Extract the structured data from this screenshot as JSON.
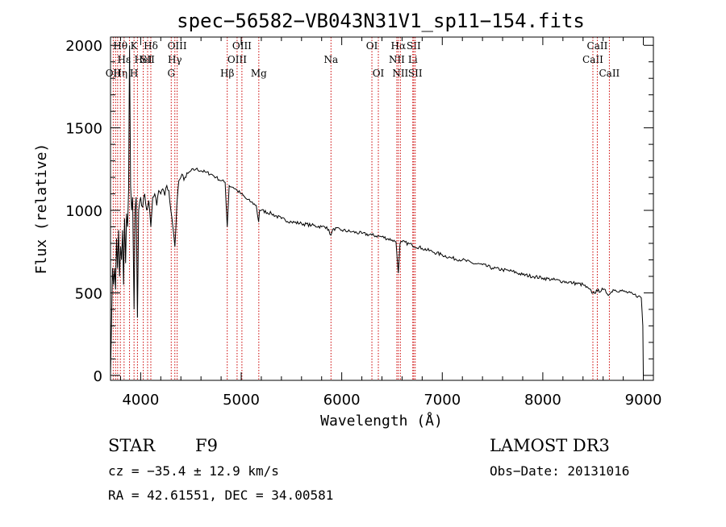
{
  "chart_data": {
    "type": "line",
    "title": "spec−56582−VB043N31V1_sp11−154.fits",
    "xlabel": "Wavelength (Å)",
    "ylabel": "Flux (relative)",
    "xlim": [
      3700,
      9100
    ],
    "ylim": [
      -30,
      2050
    ],
    "x_ticks": [
      4000,
      5000,
      6000,
      7000,
      8000,
      9000
    ],
    "y_ticks": [
      0,
      500,
      1000,
      1500,
      2000
    ],
    "x_tick_labels": [
      "4000",
      "5000",
      "6000",
      "7000",
      "8000",
      "9000"
    ],
    "y_tick_labels": [
      "0",
      "500",
      "1000",
      "1500",
      "2000"
    ],
    "grid": false,
    "series": [
      {
        "name": "spectrum",
        "x": [
          3700,
          3710,
          3720,
          3730,
          3740,
          3750,
          3760,
          3770,
          3780,
          3790,
          3800,
          3810,
          3820,
          3830,
          3840,
          3850,
          3860,
          3870,
          3880,
          3889,
          3900,
          3910,
          3920,
          3934,
          3945,
          3955,
          3968,
          3980,
          3990,
          4000,
          4020,
          4040,
          4060,
          4080,
          4101,
          4120,
          4140,
          4160,
          4180,
          4200,
          4220,
          4240,
          4260,
          4280,
          4300,
          4320,
          4340,
          4360,
          4380,
          4400,
          4450,
          4500,
          4550,
          4600,
          4650,
          4700,
          4750,
          4800,
          4840,
          4861,
          4880,
          4920,
          4960,
          5000,
          5050,
          5100,
          5150,
          5173,
          5183,
          5200,
          5300,
          5400,
          5500,
          5600,
          5700,
          5800,
          5850,
          5893,
          5920,
          6000,
          6100,
          6200,
          6300,
          6400,
          6500,
          6540,
          6563,
          6580,
          6600,
          6700,
          6800,
          6900,
          7000,
          7100,
          7200,
          7300,
          7400,
          7500,
          7600,
          7700,
          7800,
          7900,
          8000,
          8100,
          8200,
          8300,
          8400,
          8498,
          8542,
          8600,
          8662,
          8700,
          8800,
          8900,
          8950,
          8980,
          8995,
          9000
        ],
        "values": [
          0,
          300,
          650,
          550,
          650,
          520,
          830,
          650,
          880,
          600,
          780,
          700,
          880,
          550,
          950,
          680,
          980,
          900,
          1120,
          2000,
          1150,
          1000,
          1080,
          400,
          1000,
          1080,
          350,
          1000,
          1050,
          1080,
          1020,
          1100,
          1000,
          1060,
          900,
          1080,
          1100,
          1030,
          1120,
          1100,
          1130,
          1090,
          1150,
          1120,
          1000,
          900,
          780,
          1040,
          1180,
          1200,
          1200,
          1240,
          1250,
          1240,
          1230,
          1220,
          1200,
          1180,
          1170,
          900,
          1150,
          1140,
          1120,
          1100,
          1070,
          1050,
          1030,
          930,
          1000,
          1000,
          980,
          950,
          930,
          920,
          910,
          900,
          900,
          850,
          890,
          880,
          870,
          860,
          850,
          840,
          820,
          810,
          620,
          800,
          810,
          790,
          770,
          750,
          730,
          710,
          700,
          680,
          670,
          650,
          640,
          630,
          610,
          600,
          590,
          580,
          570,
          560,
          550,
          500,
          510,
          520,
          490,
          520,
          510,
          490,
          480,
          470,
          300,
          0
        ]
      }
    ],
    "lines": [
      {
        "wave": 3727,
        "labels": [
          "",
          "",
          "OII"
        ]
      },
      {
        "wave": 3750,
        "labels": [
          "",
          "",
          ""
        ]
      },
      {
        "wave": 3771,
        "labels": [
          "",
          "",
          ""
        ]
      },
      {
        "wave": 3798,
        "labels": [
          "Hθ",
          "",
          "Hη"
        ]
      },
      {
        "wave": 3835,
        "labels": [
          "",
          "Hε",
          ""
        ]
      },
      {
        "wave": 3889,
        "labels": [
          "",
          "",
          ""
        ]
      },
      {
        "wave": 3934,
        "labels": [
          "K",
          "",
          "H"
        ]
      },
      {
        "wave": 3968,
        "labels": [
          "",
          "",
          ""
        ]
      },
      {
        "wave": 4026,
        "labels": [
          "",
          "HeI",
          ""
        ]
      },
      {
        "wave": 4069,
        "labels": [
          "",
          "SII",
          ""
        ]
      },
      {
        "wave": 4101,
        "labels": [
          "Hδ",
          "",
          ""
        ]
      },
      {
        "wave": 4304,
        "labels": [
          "",
          "",
          "G"
        ]
      },
      {
        "wave": 4340,
        "labels": [
          "",
          "Hγ",
          ""
        ]
      },
      {
        "wave": 4363,
        "labels": [
          "OIII",
          "",
          ""
        ]
      },
      {
        "wave": 4861,
        "labels": [
          "",
          "",
          "Hβ"
        ]
      },
      {
        "wave": 4959,
        "labels": [
          "",
          "OIII",
          ""
        ]
      },
      {
        "wave": 5007,
        "labels": [
          "OIII",
          "",
          ""
        ]
      },
      {
        "wave": 5175,
        "labels": [
          "",
          "",
          "Mg"
        ]
      },
      {
        "wave": 5893,
        "labels": [
          "",
          "Na",
          ""
        ]
      },
      {
        "wave": 6300,
        "labels": [
          "OI",
          "",
          ""
        ]
      },
      {
        "wave": 6364,
        "labels": [
          "",
          "",
          "OI"
        ]
      },
      {
        "wave": 6548,
        "labels": [
          "",
          "NII",
          ""
        ]
      },
      {
        "wave": 6563,
        "labels": [
          "Hα",
          "",
          ""
        ]
      },
      {
        "wave": 6583,
        "labels": [
          "",
          "",
          "NII"
        ]
      },
      {
        "wave": 6707,
        "labels": [
          "",
          "Li",
          ""
        ]
      },
      {
        "wave": 6716,
        "labels": [
          "SII",
          "",
          ""
        ]
      },
      {
        "wave": 6731,
        "labels": [
          "",
          "",
          "SII"
        ]
      },
      {
        "wave": 8498,
        "labels": [
          "",
          "CaII",
          ""
        ]
      },
      {
        "wave": 8542,
        "labels": [
          "CaII",
          "",
          ""
        ]
      },
      {
        "wave": 8662,
        "labels": [
          "",
          "",
          "CaII"
        ]
      }
    ]
  },
  "info": {
    "object_class": "STAR",
    "subclass": "F9",
    "survey": "LAMOST DR3",
    "redshift": "cz = −35.4 ± 12.9 km/s",
    "obs_date": "Obs−Date: 20131016",
    "coords": "RA =  42.61551, DEC =  34.00581"
  }
}
